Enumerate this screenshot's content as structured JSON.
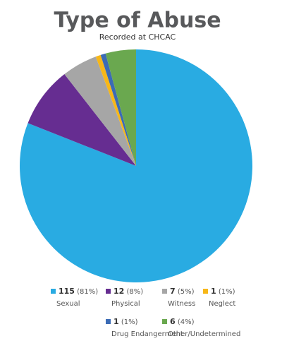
{
  "chart_data": {
    "type": "pie",
    "title": "Type of Abuse",
    "subtitle": "Recorded at CHCAC",
    "categories": [
      "Sexual",
      "Physical",
      "Witness",
      "Neglect",
      "Drug Endangerment",
      "Other/Undetermined"
    ],
    "values": [
      115,
      12,
      7,
      1,
      1,
      6
    ],
    "value_labels": [
      "115 (81%)",
      "12 (8%)",
      "7 (5%)",
      "1 (1%)",
      "1 (1%)",
      "6 (4%)"
    ],
    "colors": [
      "#29abe2",
      "#662d91",
      "#a6a6a6",
      "#f7b718",
      "#3b6bb5",
      "#6aa84f"
    ]
  }
}
